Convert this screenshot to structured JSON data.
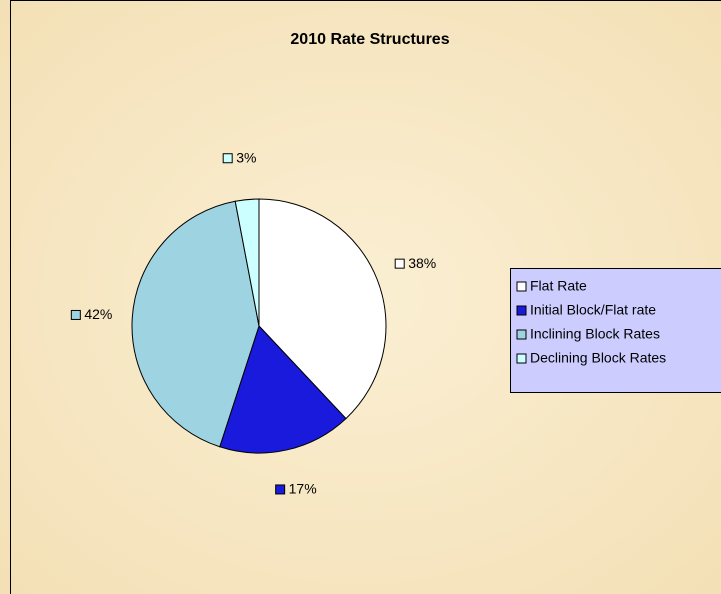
{
  "chart_data": {
    "type": "pie",
    "title": "2010  Rate Structures",
    "categories": [
      "Flat Rate",
      "Initial Block/Flat rate",
      "Inclining Block Rates",
      "Declining Block Rates"
    ],
    "values": [
      38,
      17,
      42,
      3
    ],
    "value_labels": [
      "38%",
      "17%",
      "42%",
      "3%"
    ],
    "colors": [
      "#ffffff",
      "#1a1adc",
      "#9ed4e2",
      "#ccffff"
    ],
    "legend": "right"
  }
}
